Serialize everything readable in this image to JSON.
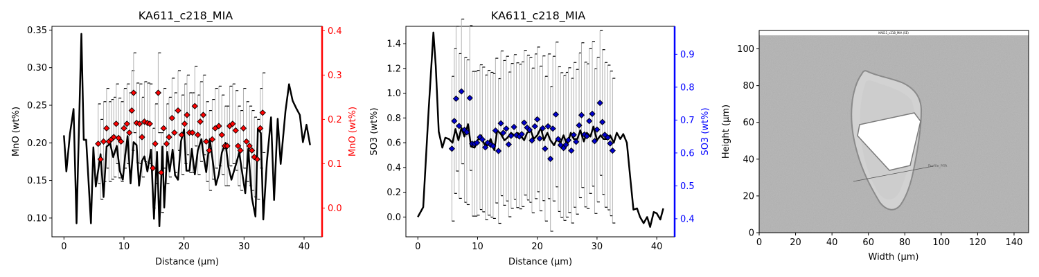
{
  "chart_data": [
    {
      "type": "line",
      "title": "KA611_c218_MIA",
      "xlabel": "Distance (µm)",
      "ylabel": "MnO (wt%)",
      "y2label": "MnO (wt%)",
      "xlim": [
        -2,
        43
      ],
      "ylim": [
        0.075,
        0.355
      ],
      "y2lim": [
        -0.065,
        0.41
      ],
      "xticks": [
        0,
        10,
        20,
        30,
        40
      ],
      "yticks": [
        0.1,
        0.15,
        0.2,
        0.25,
        0.3,
        0.35
      ],
      "y2ticks": [
        0.0,
        0.1,
        0.2,
        0.3,
        0.4
      ],
      "secondary_color": "#ff0000",
      "line": {
        "name": "",
        "color": "#000000",
        "x": [
          0.0,
          0.4,
          1.0,
          1.6,
          2.1,
          2.9,
          3.3,
          3.7,
          4.5,
          4.9,
          5.3,
          5.7,
          6.1,
          6.6,
          7.1,
          7.7,
          8.2,
          8.8,
          9.3,
          9.8,
          10.2,
          10.6,
          11.1,
          11.6,
          12.1,
          12.5,
          13.0,
          13.4,
          13.9,
          14.5,
          15.0,
          15.5,
          15.9,
          16.4,
          16.7,
          17.2,
          17.6,
          18.1,
          18.5,
          19.0,
          19.5,
          20.0,
          20.4,
          20.9,
          21.3,
          21.8,
          22.3,
          22.9,
          23.3,
          23.7,
          24.3,
          24.8,
          25.3,
          25.8,
          26.3,
          26.9,
          27.4,
          27.9,
          28.6,
          29.2,
          29.7,
          30.2,
          30.7,
          31.3,
          31.9,
          32.3,
          32.8,
          33.2,
          33.8,
          34.5,
          35.0,
          35.6,
          36.1,
          36.9,
          37.5,
          38.1,
          38.7,
          39.3,
          39.8,
          40.4,
          41.0
        ],
        "y": [
          0.21,
          0.162,
          0.212,
          0.245,
          0.093,
          0.345,
          0.204,
          0.204,
          0.093,
          0.194,
          0.142,
          0.163,
          0.185,
          0.128,
          0.195,
          0.199,
          0.181,
          0.196,
          0.163,
          0.151,
          0.183,
          0.209,
          0.146,
          0.201,
          0.197,
          0.143,
          0.176,
          0.182,
          0.162,
          0.191,
          0.099,
          0.188,
          0.089,
          0.195,
          0.114,
          0.188,
          0.162,
          0.191,
          0.157,
          0.151,
          0.202,
          0.218,
          0.163,
          0.163,
          0.192,
          0.158,
          0.19,
          0.205,
          0.18,
          0.161,
          0.205,
          0.175,
          0.144,
          0.158,
          0.187,
          0.2,
          0.168,
          0.151,
          0.17,
          0.187,
          0.16,
          0.133,
          0.192,
          0.127,
          0.102,
          0.219,
          0.213,
          0.098,
          0.175,
          0.234,
          0.124,
          0.232,
          0.172,
          0.242,
          0.278,
          0.256,
          0.246,
          0.237,
          0.201,
          0.224,
          0.197
        ]
      },
      "scatter": {
        "name": "",
        "color": "#ff0000",
        "marker": "diamond",
        "x": [
          5.7,
          6.1,
          6.6,
          7.1,
          7.5,
          7.9,
          8.3,
          8.7,
          9.1,
          9.5,
          10.0,
          10.5,
          10.9,
          11.3,
          11.6,
          12.1,
          12.6,
          13.0,
          13.4,
          13.9,
          14.3,
          14.8,
          15.2,
          15.7,
          16.2,
          16.6,
          17.1,
          17.5,
          18.0,
          18.4,
          19.0,
          19.6,
          20.1,
          20.5,
          20.9,
          21.4,
          21.8,
          22.3,
          22.7,
          23.2,
          23.7,
          24.2,
          24.7,
          25.2,
          25.8,
          26.3,
          26.8,
          27.2,
          27.6,
          28.1,
          28.6,
          29.0,
          29.4,
          29.9,
          30.4,
          30.9,
          31.3,
          31.7,
          32.2,
          32.7,
          33.1
        ],
        "y": [
          0.145,
          0.11,
          0.15,
          0.18,
          0.15,
          0.155,
          0.16,
          0.19,
          0.158,
          0.15,
          0.18,
          0.19,
          0.17,
          0.22,
          0.26,
          0.192,
          0.19,
          0.16,
          0.195,
          0.192,
          0.19,
          0.09,
          0.145,
          0.26,
          0.08,
          0.18,
          0.145,
          0.16,
          0.203,
          0.17,
          0.22,
          0.165,
          0.19,
          0.21,
          0.17,
          0.17,
          0.23,
          0.165,
          0.195,
          0.21,
          0.15,
          0.13,
          0.155,
          0.18,
          0.185,
          0.165,
          0.14,
          0.14,
          0.185,
          0.19,
          0.175,
          0.14,
          0.13,
          0.18,
          0.15,
          0.14,
          0.13,
          0.115,
          0.11,
          0.18,
          0.215
        ],
        "error": [
          0.09,
          0.09,
          0.09,
          0.09,
          0.09,
          0.09,
          0.09,
          0.09,
          0.09,
          0.09,
          0.09,
          0.09,
          0.09,
          0.09,
          0.09,
          0.09,
          0.09,
          0.09,
          0.09,
          0.09,
          0.09,
          0.09,
          0.09,
          0.09,
          0.09,
          0.09,
          0.09,
          0.09,
          0.09,
          0.09,
          0.09,
          0.09,
          0.09,
          0.09,
          0.09,
          0.09,
          0.09,
          0.09,
          0.09,
          0.09,
          0.09,
          0.09,
          0.09,
          0.09,
          0.09,
          0.09,
          0.09,
          0.09,
          0.09,
          0.09,
          0.09,
          0.09,
          0.09,
          0.09,
          0.09,
          0.09,
          0.09,
          0.09,
          0.09,
          0.09,
          0.09
        ]
      }
    },
    {
      "type": "line",
      "title": "KA611_c218_MIA",
      "xlabel": "Distance (µm)",
      "ylabel": "SO3 (wt%)",
      "y2label": "SO3 (wt%)",
      "xlim": [
        -2,
        43
      ],
      "ylim": [
        -0.16,
        1.54
      ],
      "y2lim": [
        0.345,
        0.985
      ],
      "xticks": [
        0,
        10,
        20,
        30,
        40
      ],
      "yticks": [
        0.0,
        0.2,
        0.4,
        0.6,
        0.8,
        1.0,
        1.2,
        1.4
      ],
      "y2ticks": [
        0.4,
        0.5,
        0.6,
        0.7,
        0.8,
        0.9
      ],
      "secondary_color": "#0000ff",
      "line": {
        "name": "",
        "color": "#000000",
        "x": [
          0.0,
          0.9,
          1.8,
          2.6,
          3.0,
          3.5,
          4.1,
          4.6,
          5.2,
          5.8,
          6.3,
          6.8,
          7.3,
          7.8,
          8.4,
          8.9,
          9.5,
          10.0,
          10.6,
          11.1,
          11.7,
          12.2,
          12.8,
          13.3,
          13.9,
          14.5,
          15.0,
          15.6,
          16.1,
          16.7,
          17.2,
          17.8,
          18.3,
          18.9,
          19.4,
          20.0,
          20.6,
          21.1,
          21.7,
          22.2,
          22.8,
          23.3,
          23.9,
          24.4,
          25.0,
          25.6,
          26.1,
          26.7,
          27.2,
          27.8,
          28.3,
          28.9,
          29.4,
          30.0,
          30.6,
          31.1,
          31.7,
          32.2,
          32.8,
          33.3,
          33.9,
          34.4,
          35.0,
          35.6,
          36.1,
          36.7,
          37.2,
          37.8,
          38.4,
          38.9,
          39.5,
          40.0,
          40.6,
          41.1
        ],
        "y": [
          0.0,
          0.08,
          0.86,
          1.49,
          1.22,
          0.69,
          0.56,
          0.64,
          0.63,
          0.6,
          0.71,
          0.62,
          0.72,
          0.65,
          0.75,
          0.57,
          0.56,
          0.62,
          0.66,
          0.59,
          0.58,
          0.63,
          0.54,
          0.7,
          0.67,
          0.62,
          0.64,
          0.68,
          0.66,
          0.68,
          0.66,
          0.62,
          0.68,
          0.7,
          0.63,
          0.66,
          0.72,
          0.62,
          0.68,
          0.62,
          0.58,
          0.63,
          0.6,
          0.66,
          0.58,
          0.68,
          0.63,
          0.63,
          0.7,
          0.61,
          0.68,
          0.65,
          0.73,
          0.62,
          0.66,
          0.63,
          0.63,
          0.66,
          0.6,
          0.68,
          0.63,
          0.67,
          0.6,
          0.3,
          0.06,
          0.07,
          0.0,
          -0.05,
          0.0,
          -0.08,
          0.04,
          0.03,
          -0.02,
          0.07
        ]
      },
      "scatter": {
        "name": "",
        "color": "#0000cc",
        "marker": "diamond",
        "x": [
          5.7,
          6.1,
          6.4,
          6.9,
          7.3,
          7.8,
          8.2,
          8.7,
          9.1,
          9.5,
          9.9,
          10.4,
          10.8,
          11.3,
          11.7,
          12.2,
          12.6,
          13.0,
          13.5,
          13.9,
          14.3,
          14.8,
          15.2,
          15.6,
          16.1,
          16.5,
          17.0,
          17.4,
          17.8,
          18.3,
          18.7,
          19.1,
          19.6,
          20.0,
          20.4,
          20.9,
          21.3,
          21.8,
          22.2,
          22.6,
          23.1,
          23.5,
          23.9,
          24.4,
          24.8,
          25.2,
          25.7,
          26.1,
          26.5,
          27.0,
          27.4,
          27.9,
          28.3,
          28.7,
          29.2,
          29.6,
          30.0,
          30.5,
          30.9,
          31.3,
          31.8,
          32.2,
          32.6
        ],
        "y": [
          0.613,
          0.697,
          0.765,
          0.682,
          0.787,
          0.67,
          0.663,
          0.767,
          0.628,
          0.628,
          0.631,
          0.648,
          0.641,
          0.617,
          0.631,
          0.625,
          0.621,
          0.668,
          0.606,
          0.69,
          0.661,
          0.674,
          0.626,
          0.652,
          0.679,
          0.654,
          0.65,
          0.657,
          0.692,
          0.677,
          0.67,
          0.638,
          0.681,
          0.702,
          0.644,
          0.675,
          0.613,
          0.681,
          0.582,
          0.674,
          0.717,
          0.642,
          0.624,
          0.615,
          0.625,
          0.639,
          0.607,
          0.655,
          0.634,
          0.684,
          0.715,
          0.656,
          0.651,
          0.697,
          0.719,
          0.636,
          0.671,
          0.752,
          0.694,
          0.655,
          0.647,
          0.629,
          0.607
        ],
        "error": [
          0.22,
          0.22,
          0.22,
          0.22,
          0.22,
          0.22,
          0.22,
          0.22,
          0.22,
          0.22,
          0.22,
          0.22,
          0.22,
          0.22,
          0.22,
          0.22,
          0.22,
          0.22,
          0.22,
          0.22,
          0.22,
          0.22,
          0.22,
          0.22,
          0.22,
          0.22,
          0.22,
          0.22,
          0.22,
          0.22,
          0.22,
          0.22,
          0.22,
          0.22,
          0.22,
          0.22,
          0.22,
          0.22,
          0.22,
          0.22,
          0.22,
          0.22,
          0.22,
          0.22,
          0.22,
          0.22,
          0.22,
          0.22,
          0.22,
          0.22,
          0.22,
          0.22,
          0.22,
          0.22,
          0.22,
          0.22,
          0.22,
          0.22,
          0.22,
          0.22,
          0.22,
          0.22,
          0.22
        ]
      }
    },
    {
      "type": "image",
      "title": "",
      "xlabel": "Width (µm)",
      "ylabel": "Height (µm)",
      "xlim": [
        0,
        148
      ],
      "ylim": [
        0,
        110
      ],
      "xticks": [
        0,
        20,
        40,
        60,
        80,
        100,
        120,
        140
      ],
      "yticks": [
        0,
        20,
        40,
        60,
        80,
        100
      ],
      "image_caption": "KA611_c218_MIA (SE)",
      "scale_label": "Profile_MIA"
    }
  ]
}
